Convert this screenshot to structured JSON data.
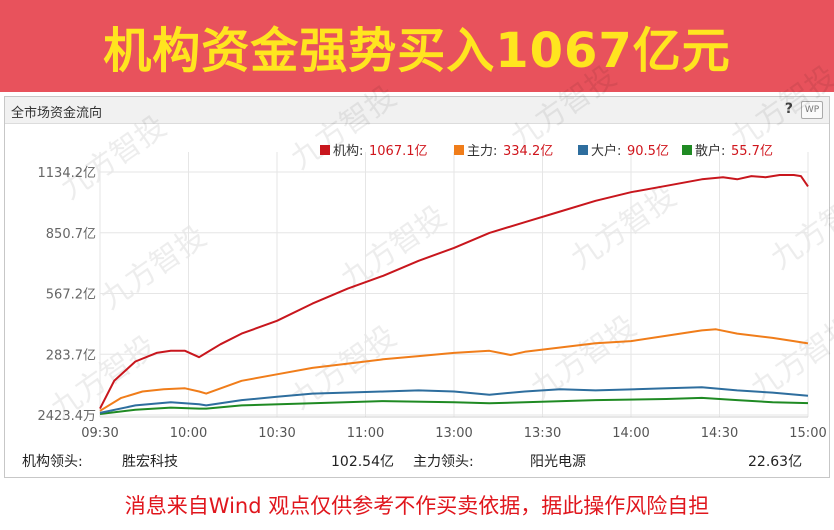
{
  "banner": {
    "title": "机构资金强势买入1067亿元"
  },
  "panel": {
    "title": "全市场资金流向",
    "help": "?",
    "wp": "WP"
  },
  "watermark": "九方智投",
  "chart_data": {
    "type": "line",
    "x_ticks": [
      "09:30",
      "10:00",
      "10:30",
      "11:00",
      "13:00",
      "13:30",
      "14:00",
      "14:30",
      "15:00"
    ],
    "y_ticks": [
      "2423.4万",
      "283.7亿",
      "567.2亿",
      "850.7亿",
      "1134.2亿"
    ],
    "ylim": [
      0.24,
      1134.2
    ],
    "unit": "亿",
    "legend": [
      {
        "label": "机构:",
        "value": "1067.1亿",
        "color": "#c8161d"
      },
      {
        "label": "主力:",
        "value": "334.2亿",
        "color": "#f07d1a"
      },
      {
        "label": "大户:",
        "value": "90.5亿",
        "color": "#2e6e9e"
      },
      {
        "label": "散户:",
        "value": "55.7亿",
        "color": "#1f8a23"
      }
    ],
    "series": [
      {
        "name": "机构",
        "color": "#c8161d",
        "x": [
          0,
          0.02,
          0.05,
          0.08,
          0.1,
          0.12,
          0.14,
          0.15,
          0.17,
          0.2,
          0.25,
          0.3,
          0.35,
          0.4,
          0.45,
          0.5,
          0.55,
          0.6,
          0.65,
          0.7,
          0.75,
          0.8,
          0.85,
          0.88,
          0.9,
          0.92,
          0.94,
          0.96,
          0.98,
          0.99,
          1.0
        ],
        "values": [
          30,
          160,
          250,
          290,
          300,
          300,
          270,
          290,
          330,
          380,
          440,
          520,
          590,
          650,
          720,
          780,
          850,
          900,
          950,
          1000,
          1040,
          1070,
          1100,
          1110,
          1100,
          1115,
          1110,
          1120,
          1120,
          1115,
          1067.1
        ]
      },
      {
        "name": "主力",
        "color": "#f07d1a",
        "x": [
          0,
          0.03,
          0.06,
          0.09,
          0.12,
          0.14,
          0.15,
          0.2,
          0.25,
          0.3,
          0.35,
          0.4,
          0.45,
          0.5,
          0.55,
          0.58,
          0.6,
          0.65,
          0.7,
          0.75,
          0.8,
          0.85,
          0.87,
          0.9,
          0.95,
          0.98,
          1.0
        ],
        "values": [
          20,
          80,
          110,
          120,
          125,
          110,
          100,
          160,
          190,
          220,
          240,
          260,
          275,
          290,
          300,
          280,
          295,
          315,
          335,
          345,
          370,
          395,
          400,
          380,
          360,
          345,
          334.2
        ]
      },
      {
        "name": "大户",
        "color": "#2e6e9e",
        "x": [
          0,
          0.05,
          0.1,
          0.14,
          0.15,
          0.2,
          0.25,
          0.3,
          0.4,
          0.45,
          0.5,
          0.55,
          0.6,
          0.65,
          0.7,
          0.8,
          0.85,
          0.9,
          0.95,
          1.0
        ],
        "values": [
          10,
          45,
          60,
          50,
          45,
          70,
          85,
          100,
          110,
          115,
          110,
          95,
          110,
          120,
          115,
          125,
          130,
          115,
          105,
          90.5
        ]
      },
      {
        "name": "散户",
        "color": "#1f8a23",
        "x": [
          0,
          0.05,
          0.1,
          0.14,
          0.15,
          0.2,
          0.3,
          0.4,
          0.5,
          0.55,
          0.6,
          0.7,
          0.8,
          0.85,
          0.9,
          0.95,
          1.0
        ],
        "values": [
          5,
          25,
          35,
          30,
          30,
          45,
          55,
          65,
          60,
          55,
          60,
          70,
          75,
          80,
          70,
          60,
          55.7
        ]
      }
    ]
  },
  "footer": {
    "org_lead_label": "机构领头:",
    "org_lead_name": "胜宏科技",
    "org_lead_value": "102.54亿",
    "main_lead_label": "主力领头:",
    "main_lead_name": "阳光电源",
    "main_lead_value": "22.63亿"
  },
  "disclaimer": "消息来自Wind 观点仅供参考不作买卖依据，据此操作风险自担"
}
